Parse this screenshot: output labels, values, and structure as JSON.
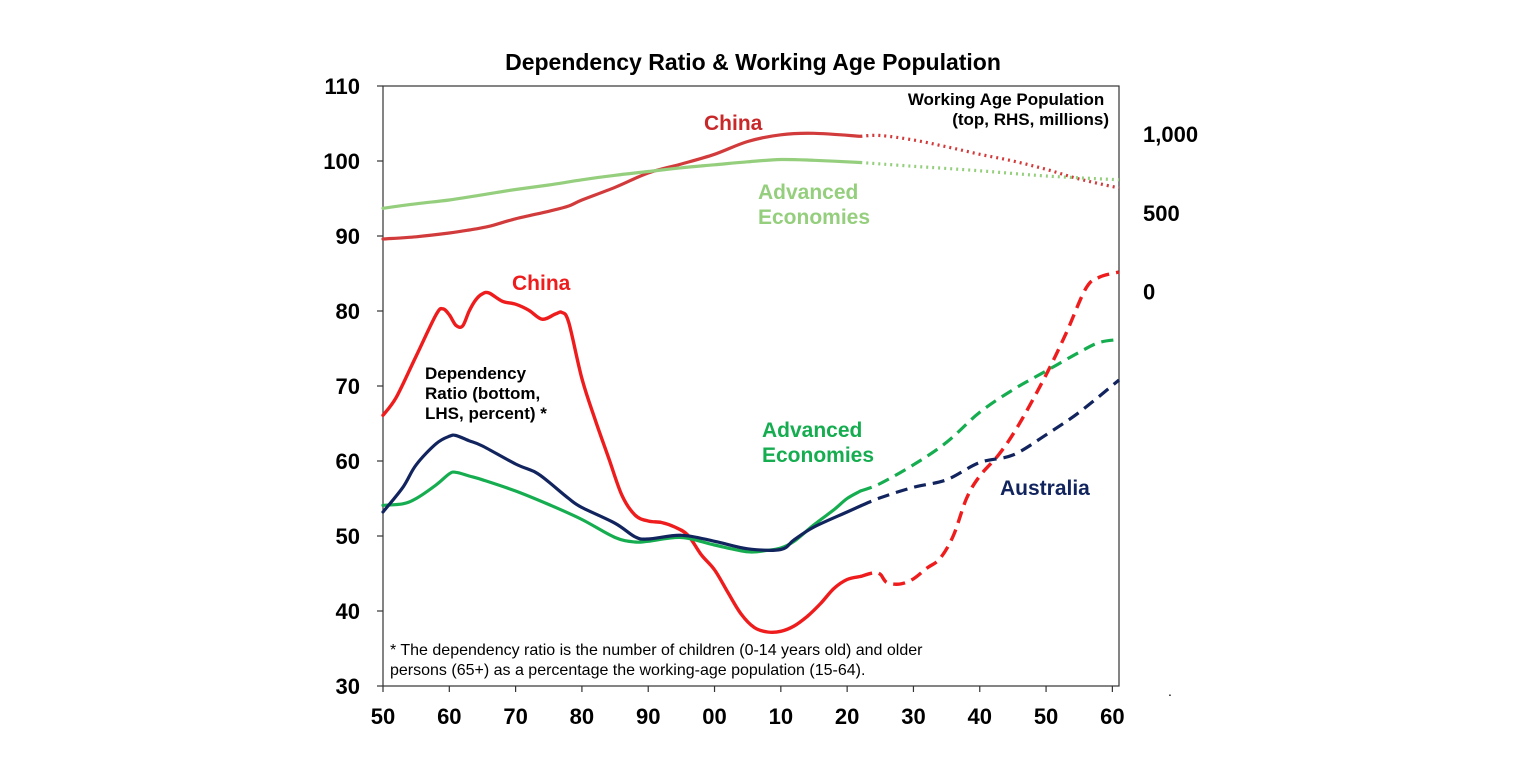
{
  "chart_data": {
    "type": "line",
    "title": "Dependency Ratio & Working Age Population",
    "x_tick_labels": [
      "50",
      "60",
      "70",
      "80",
      "90",
      "00",
      "10",
      "20",
      "30",
      "40",
      "50",
      "60"
    ],
    "y_left_ticks": [
      "30",
      "40",
      "50",
      "60",
      "70",
      "80",
      "90",
      "100",
      "110"
    ],
    "y_left_range": [
      30,
      110
    ],
    "y_right_ticks": [
      "0",
      "500",
      "1,000"
    ],
    "x_range": [
      1950,
      2061
    ],
    "colors": {
      "china_wap": "#d23b3b",
      "adv_wap": "#95cf7e",
      "china_dep": "#ee1c1c",
      "adv_dep": "#16ad50",
      "aus_dep": "#12245e"
    },
    "annotations": {
      "wap_label": [
        "Working Age Population",
        "(top, RHS, millions)"
      ],
      "dep_label": [
        "Dependency",
        "Ratio (bottom,",
        "LHS, percent) *"
      ],
      "china_top": "China",
      "adv_top": [
        "Advanced",
        "Economies"
      ],
      "china_bottom": "China",
      "adv_bottom": [
        "Advanced",
        "Economies"
      ],
      "australia": "Australia",
      "footnote": [
        "* The dependency ratio is the number of children (0-14 years old) and older",
        "persons (65+) as a percentage the working-age population (15-64)."
      ],
      "corner_mark": "."
    },
    "series": [
      {
        "key": "china_wap",
        "axis": "right",
        "split": 2022,
        "points": [
          [
            1950,
            89.6
          ],
          [
            1955,
            89.9
          ],
          [
            1960,
            90.4
          ],
          [
            1963,
            90.8
          ],
          [
            1966,
            91.3
          ],
          [
            1970,
            92.3
          ],
          [
            1975,
            93.3
          ],
          [
            1978,
            94.0
          ],
          [
            1980,
            94.8
          ],
          [
            1985,
            96.5
          ],
          [
            1990,
            98.4
          ],
          [
            1995,
            99.6
          ],
          [
            2000,
            100.9
          ],
          [
            2005,
            102.6
          ],
          [
            2010,
            103.5
          ],
          [
            2015,
            103.7
          ],
          [
            2022,
            103.3
          ],
          [
            2025,
            103.4
          ],
          [
            2030,
            102.8
          ],
          [
            2035,
            101.9
          ],
          [
            2040,
            100.9
          ],
          [
            2045,
            100.0
          ],
          [
            2050,
            98.9
          ],
          [
            2055,
            97.6
          ],
          [
            2061,
            96.4
          ]
        ]
      },
      {
        "key": "adv_wap",
        "axis": "right",
        "split": 2022,
        "points": [
          [
            1950,
            93.7
          ],
          [
            1955,
            94.3
          ],
          [
            1960,
            94.8
          ],
          [
            1965,
            95.5
          ],
          [
            1970,
            96.2
          ],
          [
            1975,
            96.8
          ],
          [
            1980,
            97.5
          ],
          [
            1985,
            98.1
          ],
          [
            1990,
            98.6
          ],
          [
            1995,
            99.1
          ],
          [
            2000,
            99.5
          ],
          [
            2005,
            99.9
          ],
          [
            2010,
            100.2
          ],
          [
            2015,
            100.1
          ],
          [
            2022,
            99.8
          ],
          [
            2030,
            99.3
          ],
          [
            2040,
            98.7
          ],
          [
            2050,
            98.0
          ],
          [
            2061,
            97.5
          ]
        ]
      },
      {
        "key": "china_dep",
        "axis": "left",
        "split": 2022,
        "points": [
          [
            1950,
            66.1
          ],
          [
            1952,
            68.5
          ],
          [
            1955,
            74.0
          ],
          [
            1958,
            79.5
          ],
          [
            1959,
            80.3
          ],
          [
            1960,
            79.5
          ],
          [
            1961,
            78.1
          ],
          [
            1962,
            78.0
          ],
          [
            1963,
            80.0
          ],
          [
            1964,
            81.5
          ],
          [
            1965,
            82.3
          ],
          [
            1966,
            82.4
          ],
          [
            1968,
            81.3
          ],
          [
            1970,
            80.9
          ],
          [
            1972,
            80.1
          ],
          [
            1974,
            78.9
          ],
          [
            1976,
            79.6
          ],
          [
            1977,
            79.8
          ],
          [
            1978,
            78.5
          ],
          [
            1980,
            71.0
          ],
          [
            1982,
            65.5
          ],
          [
            1984,
            60.5
          ],
          [
            1986,
            55.5
          ],
          [
            1988,
            52.8
          ],
          [
            1990,
            52.0
          ],
          [
            1992,
            51.8
          ],
          [
            1994,
            51.2
          ],
          [
            1996,
            50.1
          ],
          [
            1998,
            47.5
          ],
          [
            2000,
            45.5
          ],
          [
            2002,
            42.5
          ],
          [
            2004,
            39.6
          ],
          [
            2006,
            37.8
          ],
          [
            2008,
            37.2
          ],
          [
            2010,
            37.3
          ],
          [
            2012,
            38.0
          ],
          [
            2014,
            39.3
          ],
          [
            2016,
            41.0
          ],
          [
            2018,
            43.0
          ],
          [
            2020,
            44.2
          ],
          [
            2022,
            44.6
          ],
          [
            2024,
            45.1
          ],
          [
            2025,
            44.9
          ],
          [
            2026,
            43.8
          ],
          [
            2028,
            43.6
          ],
          [
            2030,
            44.3
          ],
          [
            2032,
            45.7
          ],
          [
            2034,
            47.0
          ],
          [
            2036,
            50.0
          ],
          [
            2038,
            55.0
          ],
          [
            2040,
            58.0
          ],
          [
            2043,
            61.0
          ],
          [
            2046,
            65.0
          ],
          [
            2050,
            71.5
          ],
          [
            2053,
            77.0
          ],
          [
            2056,
            83.0
          ],
          [
            2058,
            84.5
          ],
          [
            2061,
            85.2
          ]
        ]
      },
      {
        "key": "adv_dep",
        "axis": "left",
        "split": 2022,
        "points": [
          [
            1950,
            54.1
          ],
          [
            1953,
            54.3
          ],
          [
            1955,
            55.0
          ],
          [
            1958,
            56.8
          ],
          [
            1960,
            58.3
          ],
          [
            1961,
            58.5
          ],
          [
            1963,
            58.0
          ],
          [
            1965,
            57.5
          ],
          [
            1970,
            56.0
          ],
          [
            1975,
            54.2
          ],
          [
            1980,
            52.2
          ],
          [
            1985,
            49.8
          ],
          [
            1988,
            49.2
          ],
          [
            1990,
            49.3
          ],
          [
            1995,
            49.8
          ],
          [
            2000,
            48.8
          ],
          [
            2005,
            47.9
          ],
          [
            2008,
            48.1
          ],
          [
            2010,
            48.4
          ],
          [
            2012,
            49.3
          ],
          [
            2015,
            51.5
          ],
          [
            2018,
            53.5
          ],
          [
            2020,
            55.0
          ],
          [
            2022,
            56.0
          ],
          [
            2025,
            57.0
          ],
          [
            2030,
            59.5
          ],
          [
            2035,
            62.5
          ],
          [
            2040,
            66.5
          ],
          [
            2045,
            69.5
          ],
          [
            2050,
            72.0
          ],
          [
            2055,
            74.5
          ],
          [
            2058,
            75.8
          ],
          [
            2061,
            76.2
          ]
        ]
      },
      {
        "key": "aus_dep",
        "axis": "left",
        "split": 2022,
        "points": [
          [
            1950,
            53.2
          ],
          [
            1953,
            56.5
          ],
          [
            1955,
            59.5
          ],
          [
            1958,
            62.3
          ],
          [
            1960,
            63.3
          ],
          [
            1961,
            63.4
          ],
          [
            1963,
            62.7
          ],
          [
            1965,
            62.0
          ],
          [
            1970,
            59.6
          ],
          [
            1973,
            58.5
          ],
          [
            1975,
            57.2
          ],
          [
            1978,
            55.0
          ],
          [
            1980,
            53.8
          ],
          [
            1985,
            51.7
          ],
          [
            1988,
            49.9
          ],
          [
            1990,
            49.6
          ],
          [
            1995,
            50.1
          ],
          [
            2000,
            49.3
          ],
          [
            2005,
            48.3
          ],
          [
            2010,
            48.2
          ],
          [
            2012,
            49.5
          ],
          [
            2015,
            51.2
          ],
          [
            2020,
            53.2
          ],
          [
            2022,
            54.0
          ],
          [
            2025,
            55.1
          ],
          [
            2030,
            56.5
          ],
          [
            2035,
            57.5
          ],
          [
            2040,
            59.8
          ],
          [
            2045,
            60.8
          ],
          [
            2050,
            63.5
          ],
          [
            2055,
            66.5
          ],
          [
            2061,
            70.8
          ]
        ]
      }
    ]
  }
}
